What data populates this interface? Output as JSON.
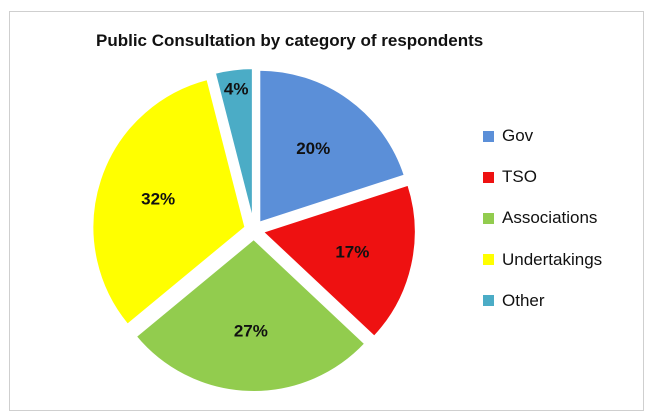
{
  "chart_data": {
    "type": "pie",
    "title": "Public Consultation by category of respondents",
    "slices": [
      {
        "name": "Gov",
        "value": 20,
        "label": "20%",
        "color": "#5b8fd8"
      },
      {
        "name": "TSO",
        "value": 17,
        "label": "17%",
        "color": "#ee1111"
      },
      {
        "name": "Associations",
        "value": 27,
        "label": "27%",
        "color": "#92cc4e"
      },
      {
        "name": "Undertakings",
        "value": 32,
        "label": "32%",
        "color": "#ffff00"
      },
      {
        "name": "Other",
        "value": 4,
        "label": "4%",
        "color": "#4bacc6"
      }
    ],
    "exploded": true,
    "legend_position": "right"
  }
}
